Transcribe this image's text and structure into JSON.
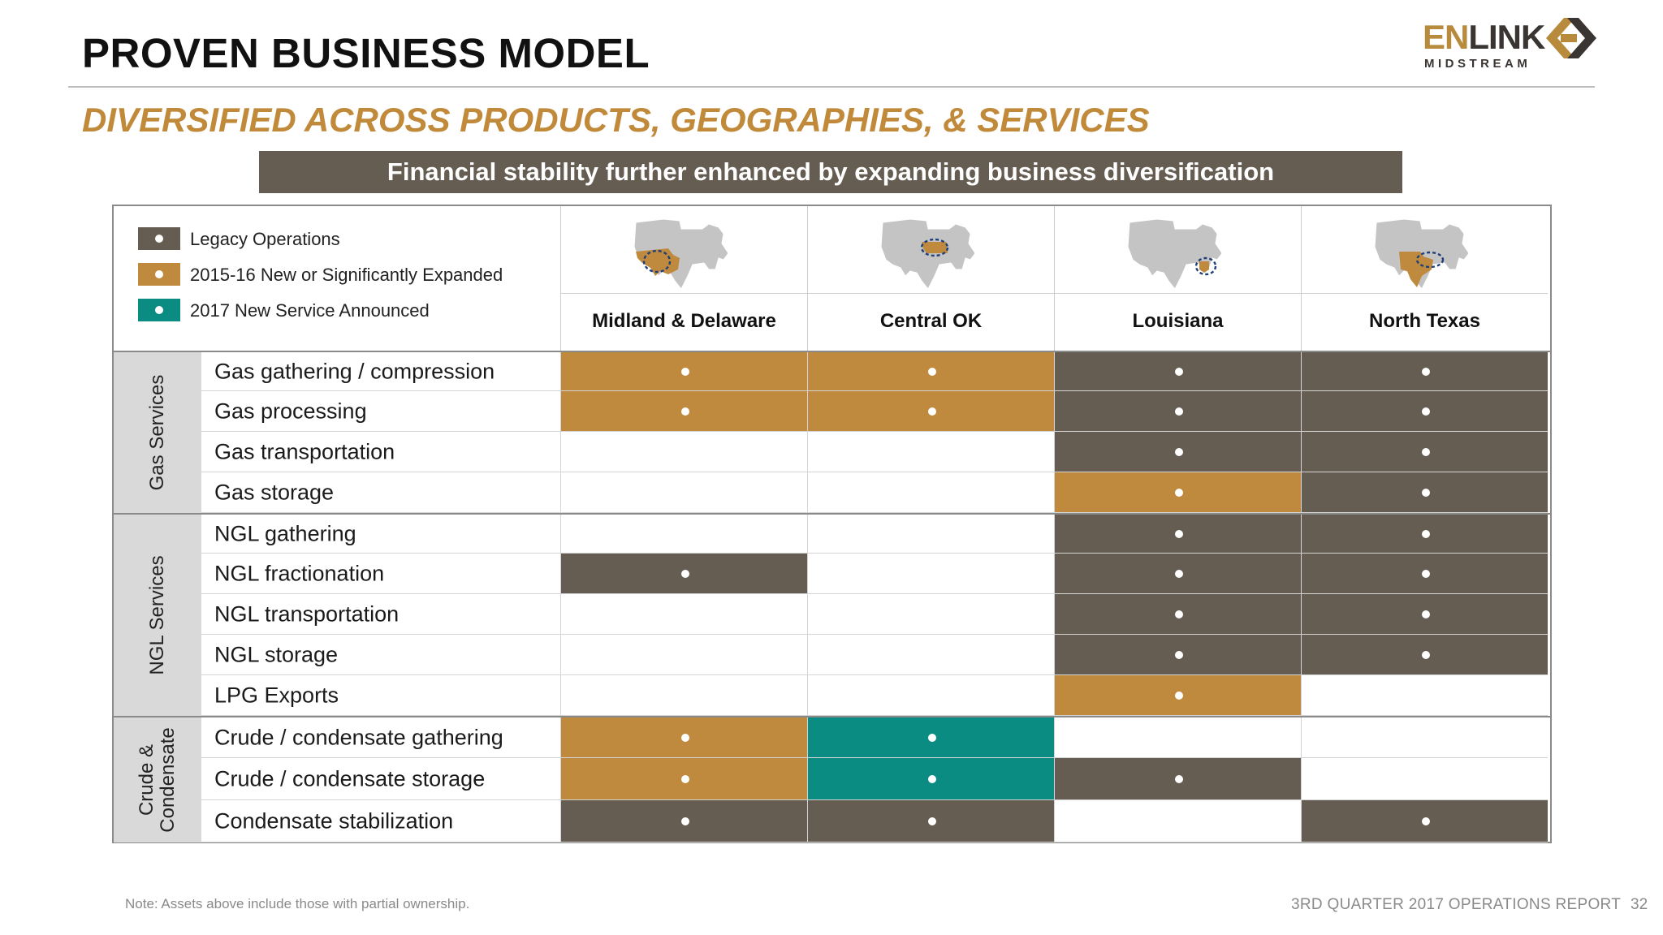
{
  "header": {
    "title": "PROVEN BUSINESS MODEL",
    "subtitle": "DIVERSIFIED ACROSS PRODUCTS, GEOGRAPHIES, & SERVICES",
    "banner": "Financial stability further enhanced by expanding business diversification"
  },
  "logo": {
    "word_accent": "EN",
    "word_rest": "LINK",
    "sub": "MIDSTREAM"
  },
  "colors": {
    "legacy": "#655c52",
    "expanded": "#bf8a3e",
    "new2017": "#0b8c82",
    "empty": "#ffffff"
  },
  "legend": [
    {
      "key": "legacy",
      "label": "Legacy Operations"
    },
    {
      "key": "expanded",
      "label": "2015-16 New or Significantly Expanded"
    },
    {
      "key": "new2017",
      "label": "2017 New Service Announced"
    }
  ],
  "regions": [
    {
      "name": "Midland & Delaware",
      "map_icon": "us-map-west-texas-icon"
    },
    {
      "name": "Central OK",
      "map_icon": "us-map-oklahoma-icon"
    },
    {
      "name": "Louisiana",
      "map_icon": "us-map-louisiana-icon"
    },
    {
      "name": "North Texas",
      "map_icon": "us-map-north-texas-icon"
    }
  ],
  "groups": [
    {
      "label": "Gas Services",
      "rows": [
        {
          "service": "Gas gathering / compression",
          "cells": [
            "expanded",
            "expanded",
            "legacy",
            "legacy"
          ]
        },
        {
          "service": "Gas processing",
          "cells": [
            "expanded",
            "expanded",
            "legacy",
            "legacy"
          ]
        },
        {
          "service": "Gas transportation",
          "cells": [
            "empty",
            "empty",
            "legacy",
            "legacy"
          ]
        },
        {
          "service": "Gas storage",
          "cells": [
            "empty",
            "empty",
            "expanded",
            "legacy"
          ]
        }
      ]
    },
    {
      "label": "NGL Services",
      "rows": [
        {
          "service": "NGL gathering",
          "cells": [
            "empty",
            "empty",
            "legacy",
            "legacy"
          ]
        },
        {
          "service": "NGL fractionation",
          "cells": [
            "legacy",
            "empty",
            "legacy",
            "legacy"
          ]
        },
        {
          "service": "NGL transportation",
          "cells": [
            "empty",
            "empty",
            "legacy",
            "legacy"
          ]
        },
        {
          "service": "NGL storage",
          "cells": [
            "empty",
            "empty",
            "legacy",
            "legacy"
          ]
        },
        {
          "service": "LPG Exports",
          "cells": [
            "empty",
            "empty",
            "expanded",
            "empty"
          ]
        }
      ]
    },
    {
      "label": "Crude & Condensate",
      "label_lines": [
        "Crude &",
        "Condensate"
      ],
      "rows": [
        {
          "service": "Crude / condensate gathering",
          "cells": [
            "expanded",
            "new2017",
            "empty",
            "empty"
          ]
        },
        {
          "service": "Crude / condensate storage",
          "cells": [
            "expanded",
            "new2017",
            "legacy",
            "empty"
          ]
        },
        {
          "service": "Condensate stabilization",
          "cells": [
            "legacy",
            "legacy",
            "empty",
            "legacy"
          ]
        }
      ]
    }
  ],
  "footer": {
    "note": "Note: Assets above include those with partial ownership.",
    "report": "3RD QUARTER 2017 OPERATIONS REPORT",
    "page": "32"
  }
}
